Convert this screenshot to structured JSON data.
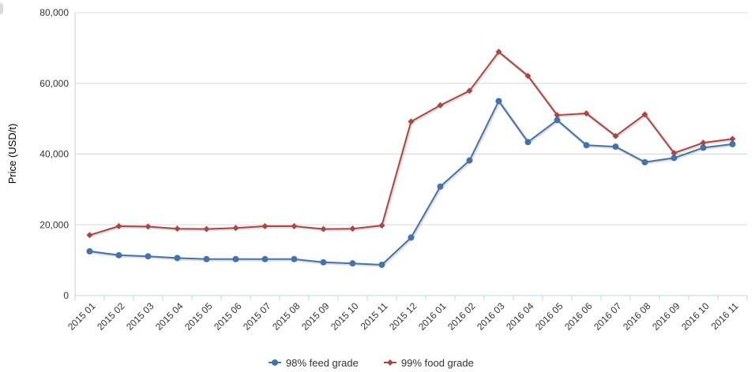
{
  "chart_data": {
    "type": "line",
    "title": "",
    "xlabel": "",
    "ylabel": "Price (USD/t)",
    "ylim": [
      0,
      80000
    ],
    "yticks": [
      0,
      20000,
      40000,
      60000,
      80000
    ],
    "ytick_labels": [
      "0",
      "20,000",
      "40,000",
      "60,000",
      "80,000"
    ],
    "grid": "horizontal",
    "legend_position": "bottom",
    "categories": [
      "2015 01",
      "2015 02",
      "2015 03",
      "2015 04",
      "2015 05",
      "2015 06",
      "2015 07",
      "2015 08",
      "2015 09",
      "2015 10",
      "2015 11",
      "2015 12",
      "2016 01",
      "2016 02",
      "2016 03",
      "2016 04",
      "2016 05",
      "2016 06",
      "2016 07",
      "2016 08",
      "2016 09",
      "2016 10",
      "2016 11"
    ],
    "series": [
      {
        "name": "98% feed grade",
        "color": "#4572a7",
        "marker": "circle",
        "values": [
          12500,
          11400,
          11100,
          10600,
          10300,
          10300,
          10300,
          10300,
          9400,
          9100,
          8700,
          16400,
          30800,
          38200,
          55000,
          43400,
          49600,
          42500,
          42100,
          37700,
          38900,
          41800,
          42800
        ]
      },
      {
        "name": "99% food grade",
        "color": "#aa4643",
        "marker": "diamond",
        "values": [
          17100,
          19600,
          19500,
          18900,
          18800,
          19100,
          19600,
          19600,
          18800,
          18900,
          19800,
          49200,
          53800,
          57900,
          68900,
          62100,
          51000,
          51500,
          45100,
          51200,
          40300,
          43200,
          44300
        ]
      }
    ]
  }
}
